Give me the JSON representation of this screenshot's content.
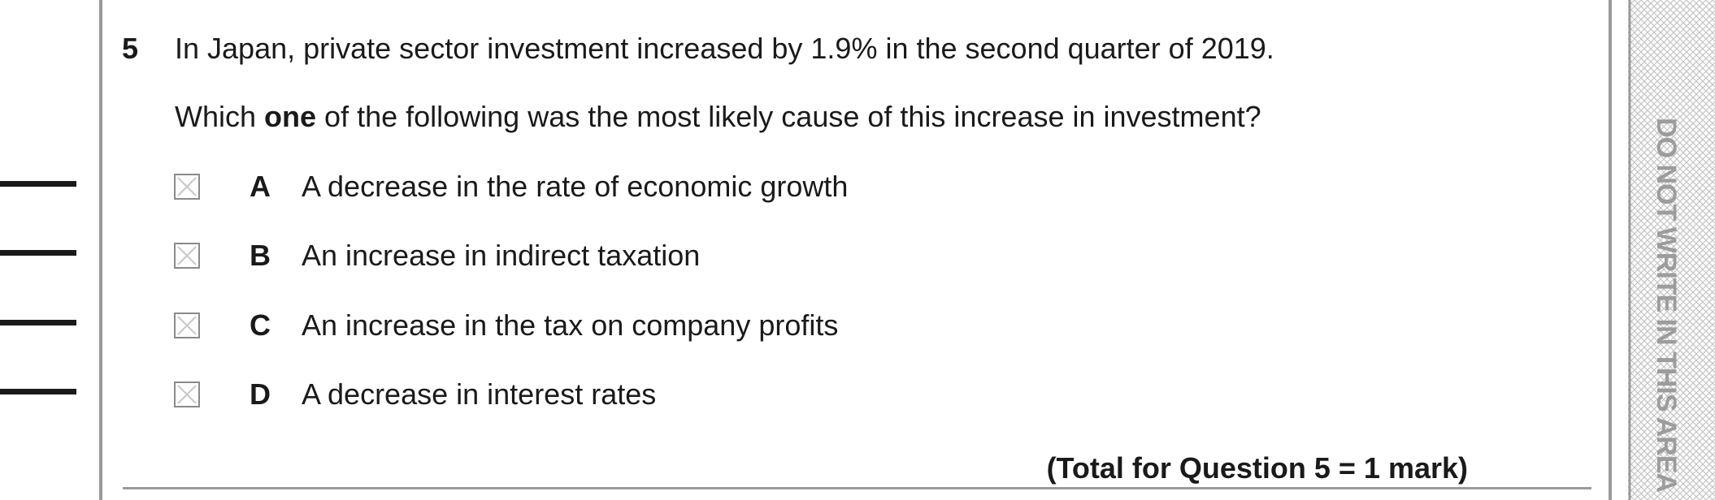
{
  "question": {
    "number": "5",
    "text": "In Japan, private sector investment increased by 1.9% in the second quarter of 2019.",
    "prompt": {
      "before": "Which ",
      "emphasis": "one",
      "after": " of the following was the most likely cause of this increase in investment?"
    },
    "options": [
      {
        "letter": "A",
        "text": "A decrease in the rate of economic growth"
      },
      {
        "letter": "B",
        "text": "An increase in indirect taxation"
      },
      {
        "letter": "C",
        "text": "An increase in the tax on company profits"
      },
      {
        "letter": "D",
        "text": "A decrease in interest rates"
      }
    ],
    "total": "(Total for Question 5 = 1 mark)"
  },
  "margin": {
    "notice": "DO NOT WRITE IN THIS AREA"
  }
}
